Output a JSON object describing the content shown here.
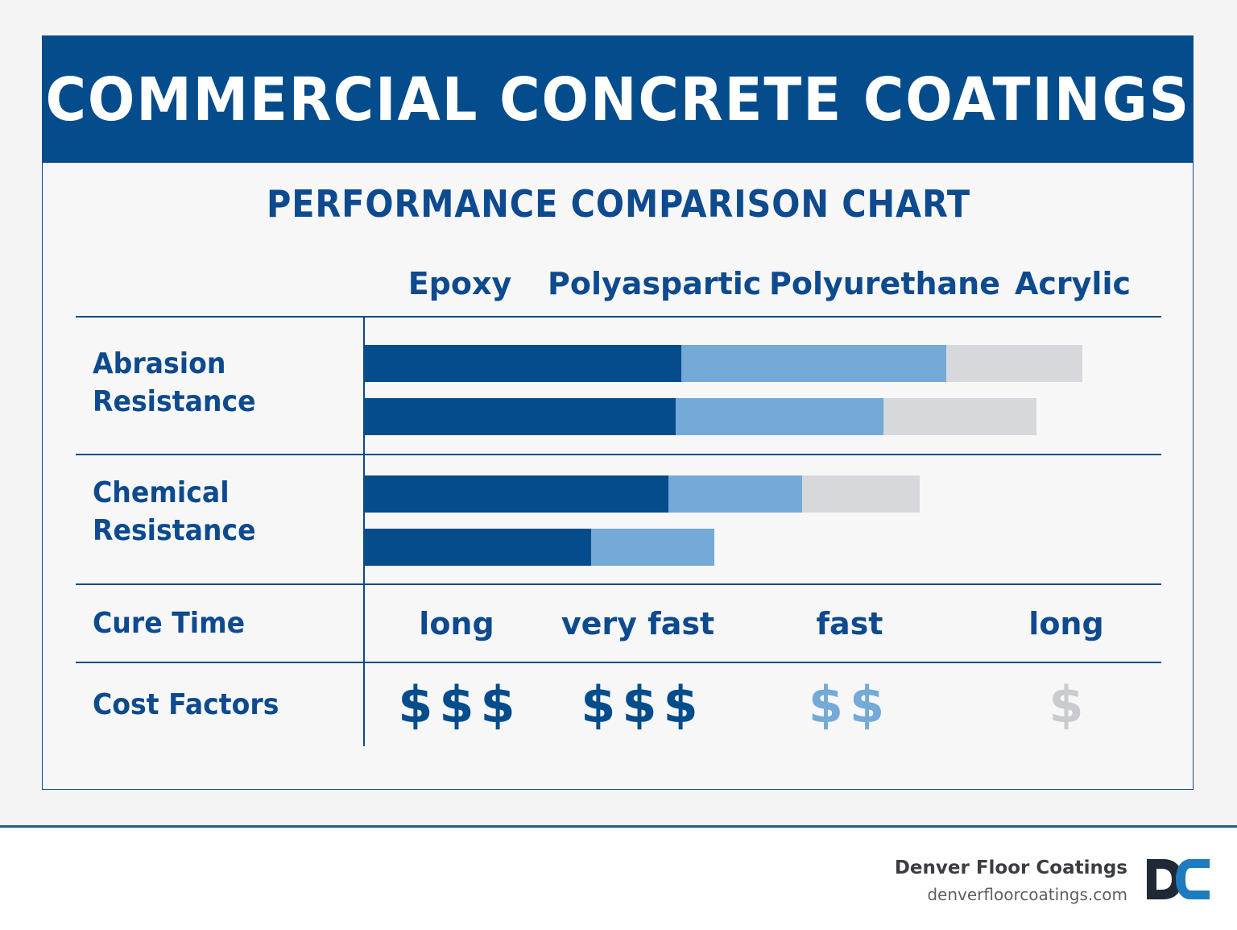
{
  "header": {
    "title": "COMMERCIAL CONCRETE COATINGS"
  },
  "chart_data": {
    "type": "bar",
    "title": "PERFORMANCE COMPARISON CHART",
    "columns": [
      "Epoxy",
      "Polyaspartic",
      "Polyurethane",
      "Acrylic"
    ],
    "rows": [
      {
        "label_line1": "Abrasion",
        "label_line2": "Resistance",
        "bars": [
          {
            "segments": [
              394,
              329,
              169
            ]
          },
          {
            "segments": [
              387,
              258,
              190
            ]
          }
        ]
      },
      {
        "label_line1": "Chemical",
        "label_line2": "Resistance",
        "bars": [
          {
            "segments": [
              378,
              166,
              146
            ]
          },
          {
            "segments": [
              282,
              153
            ]
          }
        ]
      }
    ],
    "segment_colors": [
      "#044c8c",
      "#74a9d8",
      "#d6d8db"
    ],
    "cure_time": {
      "label": "Cure Time",
      "values": [
        "long",
        "very fast",
        "fast",
        "long"
      ]
    },
    "cost": {
      "label": "Cost Factors",
      "values": [
        "$$$",
        "$$$",
        "$$",
        "$"
      ],
      "colors": [
        "#044c8c",
        "#044c8c",
        "#74a9d8",
        "#c9cbce"
      ]
    }
  },
  "footer": {
    "brand": "Denver Floor Coatings",
    "url": "denverfloorcoatings.com",
    "logo_colors": [
      "#1f2a36",
      "#1f7bc0"
    ]
  }
}
